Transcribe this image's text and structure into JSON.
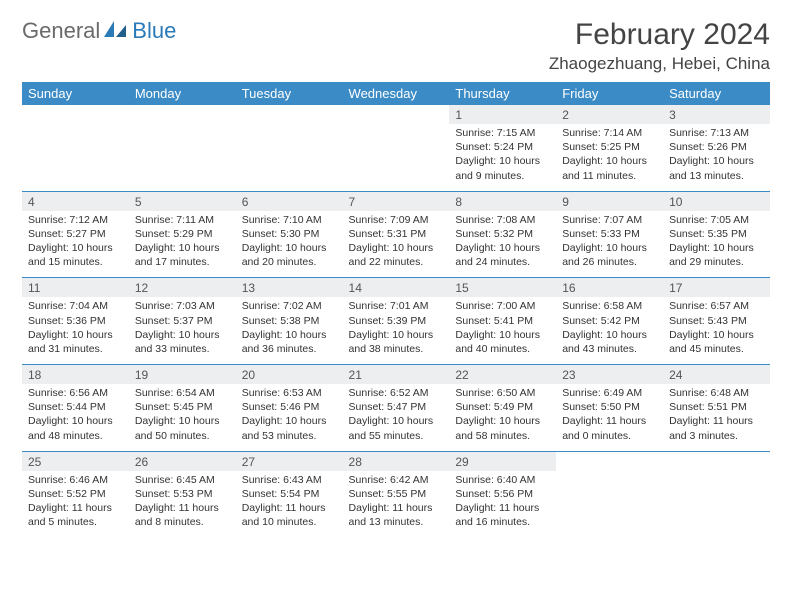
{
  "brand": {
    "part1": "General",
    "part2": "Blue"
  },
  "title": "February 2024",
  "location": "Zhaogezhuang, Hebei, China",
  "colors": {
    "header_bg": "#3b8bc6",
    "header_text": "#ffffff",
    "daynum_bg": "#eceeef",
    "text": "#333333",
    "brand_gray": "#6a6a6a",
    "brand_blue": "#2a7ab8",
    "rule": "#3b8bc6"
  },
  "day_names": [
    "Sunday",
    "Monday",
    "Tuesday",
    "Wednesday",
    "Thursday",
    "Friday",
    "Saturday"
  ],
  "weeks": [
    [
      null,
      null,
      null,
      null,
      {
        "n": "1",
        "sr": "Sunrise: 7:15 AM",
        "ss": "Sunset: 5:24 PM",
        "dl": "Daylight: 10 hours and 9 minutes."
      },
      {
        "n": "2",
        "sr": "Sunrise: 7:14 AM",
        "ss": "Sunset: 5:25 PM",
        "dl": "Daylight: 10 hours and 11 minutes."
      },
      {
        "n": "3",
        "sr": "Sunrise: 7:13 AM",
        "ss": "Sunset: 5:26 PM",
        "dl": "Daylight: 10 hours and 13 minutes."
      }
    ],
    [
      {
        "n": "4",
        "sr": "Sunrise: 7:12 AM",
        "ss": "Sunset: 5:27 PM",
        "dl": "Daylight: 10 hours and 15 minutes."
      },
      {
        "n": "5",
        "sr": "Sunrise: 7:11 AM",
        "ss": "Sunset: 5:29 PM",
        "dl": "Daylight: 10 hours and 17 minutes."
      },
      {
        "n": "6",
        "sr": "Sunrise: 7:10 AM",
        "ss": "Sunset: 5:30 PM",
        "dl": "Daylight: 10 hours and 20 minutes."
      },
      {
        "n": "7",
        "sr": "Sunrise: 7:09 AM",
        "ss": "Sunset: 5:31 PM",
        "dl": "Daylight: 10 hours and 22 minutes."
      },
      {
        "n": "8",
        "sr": "Sunrise: 7:08 AM",
        "ss": "Sunset: 5:32 PM",
        "dl": "Daylight: 10 hours and 24 minutes."
      },
      {
        "n": "9",
        "sr": "Sunrise: 7:07 AM",
        "ss": "Sunset: 5:33 PM",
        "dl": "Daylight: 10 hours and 26 minutes."
      },
      {
        "n": "10",
        "sr": "Sunrise: 7:05 AM",
        "ss": "Sunset: 5:35 PM",
        "dl": "Daylight: 10 hours and 29 minutes."
      }
    ],
    [
      {
        "n": "11",
        "sr": "Sunrise: 7:04 AM",
        "ss": "Sunset: 5:36 PM",
        "dl": "Daylight: 10 hours and 31 minutes."
      },
      {
        "n": "12",
        "sr": "Sunrise: 7:03 AM",
        "ss": "Sunset: 5:37 PM",
        "dl": "Daylight: 10 hours and 33 minutes."
      },
      {
        "n": "13",
        "sr": "Sunrise: 7:02 AM",
        "ss": "Sunset: 5:38 PM",
        "dl": "Daylight: 10 hours and 36 minutes."
      },
      {
        "n": "14",
        "sr": "Sunrise: 7:01 AM",
        "ss": "Sunset: 5:39 PM",
        "dl": "Daylight: 10 hours and 38 minutes."
      },
      {
        "n": "15",
        "sr": "Sunrise: 7:00 AM",
        "ss": "Sunset: 5:41 PM",
        "dl": "Daylight: 10 hours and 40 minutes."
      },
      {
        "n": "16",
        "sr": "Sunrise: 6:58 AM",
        "ss": "Sunset: 5:42 PM",
        "dl": "Daylight: 10 hours and 43 minutes."
      },
      {
        "n": "17",
        "sr": "Sunrise: 6:57 AM",
        "ss": "Sunset: 5:43 PM",
        "dl": "Daylight: 10 hours and 45 minutes."
      }
    ],
    [
      {
        "n": "18",
        "sr": "Sunrise: 6:56 AM",
        "ss": "Sunset: 5:44 PM",
        "dl": "Daylight: 10 hours and 48 minutes."
      },
      {
        "n": "19",
        "sr": "Sunrise: 6:54 AM",
        "ss": "Sunset: 5:45 PM",
        "dl": "Daylight: 10 hours and 50 minutes."
      },
      {
        "n": "20",
        "sr": "Sunrise: 6:53 AM",
        "ss": "Sunset: 5:46 PM",
        "dl": "Daylight: 10 hours and 53 minutes."
      },
      {
        "n": "21",
        "sr": "Sunrise: 6:52 AM",
        "ss": "Sunset: 5:47 PM",
        "dl": "Daylight: 10 hours and 55 minutes."
      },
      {
        "n": "22",
        "sr": "Sunrise: 6:50 AM",
        "ss": "Sunset: 5:49 PM",
        "dl": "Daylight: 10 hours and 58 minutes."
      },
      {
        "n": "23",
        "sr": "Sunrise: 6:49 AM",
        "ss": "Sunset: 5:50 PM",
        "dl": "Daylight: 11 hours and 0 minutes."
      },
      {
        "n": "24",
        "sr": "Sunrise: 6:48 AM",
        "ss": "Sunset: 5:51 PM",
        "dl": "Daylight: 11 hours and 3 minutes."
      }
    ],
    [
      {
        "n": "25",
        "sr": "Sunrise: 6:46 AM",
        "ss": "Sunset: 5:52 PM",
        "dl": "Daylight: 11 hours and 5 minutes."
      },
      {
        "n": "26",
        "sr": "Sunrise: 6:45 AM",
        "ss": "Sunset: 5:53 PM",
        "dl": "Daylight: 11 hours and 8 minutes."
      },
      {
        "n": "27",
        "sr": "Sunrise: 6:43 AM",
        "ss": "Sunset: 5:54 PM",
        "dl": "Daylight: 11 hours and 10 minutes."
      },
      {
        "n": "28",
        "sr": "Sunrise: 6:42 AM",
        "ss": "Sunset: 5:55 PM",
        "dl": "Daylight: 11 hours and 13 minutes."
      },
      {
        "n": "29",
        "sr": "Sunrise: 6:40 AM",
        "ss": "Sunset: 5:56 PM",
        "dl": "Daylight: 11 hours and 16 minutes."
      },
      null,
      null
    ]
  ]
}
